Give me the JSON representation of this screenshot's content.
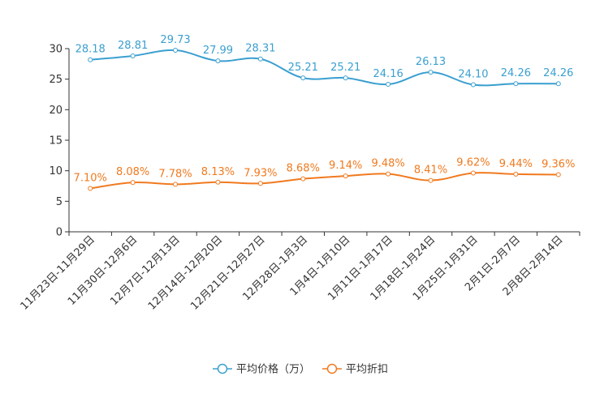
{
  "chart_data": {
    "type": "line",
    "title": "",
    "xlabel": "",
    "ylabel": "",
    "ylim": [
      0,
      30
    ],
    "yticks": [
      0,
      5,
      10,
      15,
      20,
      25,
      30
    ],
    "grid": false,
    "legend_position": "bottom",
    "categories": [
      "11月23日-11月29日",
      "11月30日-12月6日",
      "12月7日-12月13日",
      "12月14日-12月20日",
      "12月21日-12月27日",
      "12月28日-1月3日",
      "1月4日-1月10日",
      "1月11日-1月17日",
      "1月18日-1月24日",
      "1月25日-1月31日",
      "2月1日-2月7日",
      "2月8日-2月14日"
    ],
    "series": [
      {
        "name": "平均价格（万）",
        "color": "#3a9fd0",
        "values": [
          28.18,
          28.81,
          29.73,
          27.99,
          28.31,
          25.21,
          25.21,
          24.16,
          26.13,
          24.1,
          24.26,
          24.26
        ],
        "labels": [
          "28.18",
          "28.81",
          "29.73",
          "27.99",
          "28.31",
          "25.21",
          "25.21",
          "24.16",
          "26.13",
          "24.10",
          "24.26",
          "24.26"
        ]
      },
      {
        "name": "平均折扣",
        "color": "#f07a1f",
        "values": [
          7.1,
          8.08,
          7.78,
          8.13,
          7.93,
          8.68,
          9.14,
          9.48,
          8.41,
          9.62,
          9.44,
          9.36
        ],
        "labels": [
          "7.10%",
          "8.08%",
          "7.78%",
          "8.13%",
          "7.93%",
          "8.68%",
          "9.14%",
          "9.48%",
          "8.41%",
          "9.62%",
          "9.44%",
          "9.36%"
        ]
      }
    ]
  }
}
